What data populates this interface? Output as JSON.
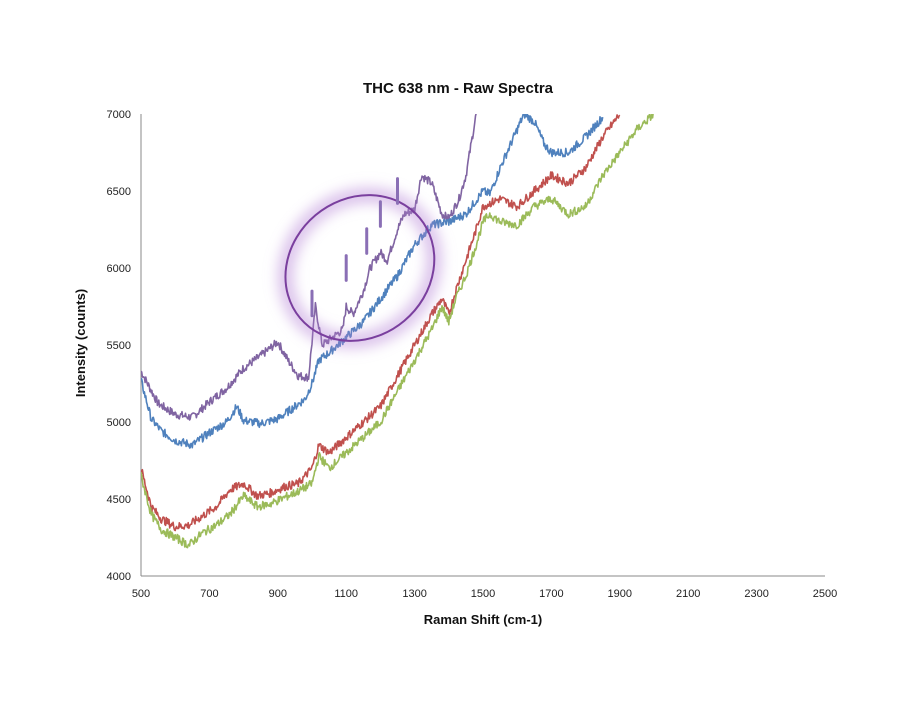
{
  "chart_data": {
    "type": "line",
    "title": "THC 638 nm - Raw Spectra",
    "xlabel": "Raman Shift (cm-1)",
    "ylabel": "Intensity (counts)",
    "xlim": [
      500,
      2500
    ],
    "ylim": [
      4000,
      7000
    ],
    "xticks": [
      "500",
      "700",
      "900",
      "1100",
      "1300",
      "1500",
      "1700",
      "1900",
      "2100",
      "2300",
      "2500"
    ],
    "yticks": [
      "4000",
      "4500",
      "5000",
      "5500",
      "6000",
      "6500",
      "7000"
    ],
    "grid": false,
    "legend": "none",
    "annotation": {
      "type": "highlight-ellipse",
      "color": "#7a3f9e",
      "center": [
        1140,
        6000
      ],
      "peak_markers": [
        1000,
        1100,
        1160,
        1200,
        1250
      ]
    },
    "series": [
      {
        "name": "purple",
        "color": "#8064a2",
        "x": [
          500,
          550,
          600,
          650,
          700,
          750,
          800,
          850,
          900,
          930,
          960,
          990,
          1000,
          1010,
          1030,
          1060,
          1090,
          1100,
          1120,
          1150,
          1170,
          1200,
          1220,
          1250,
          1270,
          1300,
          1320,
          1350,
          1380,
          1400,
          1430,
          1450,
          1480
        ],
        "y": [
          5330,
          5120,
          5050,
          5030,
          5130,
          5220,
          5350,
          5430,
          5520,
          5400,
          5300,
          5290,
          5520,
          5750,
          5500,
          5550,
          5600,
          5750,
          5700,
          5850,
          6000,
          6100,
          6050,
          6250,
          6350,
          6380,
          6600,
          6550,
          6350,
          6320,
          6450,
          6600,
          7000
        ]
      },
      {
        "name": "blue",
        "color": "#4f81bd",
        "x": [
          500,
          530,
          560,
          600,
          650,
          700,
          750,
          780,
          800,
          850,
          900,
          950,
          980,
          1000,
          1020,
          1050,
          1100,
          1150,
          1200,
          1250,
          1300,
          1350,
          1400,
          1450,
          1500,
          1520,
          1550,
          1600,
          1620,
          1650,
          1680,
          1700,
          1750,
          1800,
          1850
        ],
        "y": [
          5270,
          5020,
          4940,
          4880,
          4850,
          4930,
          5000,
          5100,
          5010,
          4990,
          5020,
          5100,
          5150,
          5250,
          5400,
          5450,
          5550,
          5650,
          5800,
          5950,
          6150,
          6280,
          6300,
          6350,
          6500,
          6480,
          6650,
          6900,
          7000,
          6950,
          6800,
          6750,
          6750,
          6850,
          6980
        ]
      },
      {
        "name": "red",
        "color": "#c0504d",
        "x": [
          500,
          530,
          560,
          600,
          640,
          680,
          720,
          760,
          800,
          840,
          880,
          920,
          960,
          1000,
          1020,
          1050,
          1100,
          1150,
          1200,
          1250,
          1300,
          1350,
          1380,
          1400,
          1420,
          1450,
          1480,
          1500,
          1550,
          1600,
          1650,
          1700,
          1750,
          1800,
          1850,
          1900
        ],
        "y": [
          4700,
          4450,
          4370,
          4320,
          4330,
          4390,
          4450,
          4560,
          4600,
          4520,
          4540,
          4580,
          4600,
          4700,
          4850,
          4800,
          4900,
          5000,
          5100,
          5300,
          5500,
          5700,
          5800,
          5700,
          5850,
          6050,
          6250,
          6400,
          6450,
          6400,
          6500,
          6600,
          6550,
          6650,
          6850,
          7000
        ]
      },
      {
        "name": "green",
        "color": "#9bbb59",
        "x": [
          500,
          530,
          560,
          600,
          640,
          680,
          720,
          760,
          800,
          840,
          880,
          920,
          960,
          1000,
          1020,
          1050,
          1100,
          1150,
          1200,
          1250,
          1300,
          1350,
          1380,
          1400,
          1420,
          1450,
          1480,
          1500,
          1520,
          1550,
          1600,
          1650,
          1700,
          1750,
          1800,
          1850,
          1900,
          1950,
          2000
        ],
        "y": [
          4650,
          4400,
          4300,
          4250,
          4200,
          4280,
          4330,
          4400,
          4520,
          4450,
          4470,
          4510,
          4550,
          4600,
          4780,
          4700,
          4800,
          4900,
          5000,
          5200,
          5400,
          5600,
          5750,
          5650,
          5800,
          5950,
          6150,
          6300,
          6350,
          6300,
          6280,
          6400,
          6450,
          6350,
          6400,
          6600,
          6750,
          6900,
          7000
        ]
      }
    ]
  }
}
